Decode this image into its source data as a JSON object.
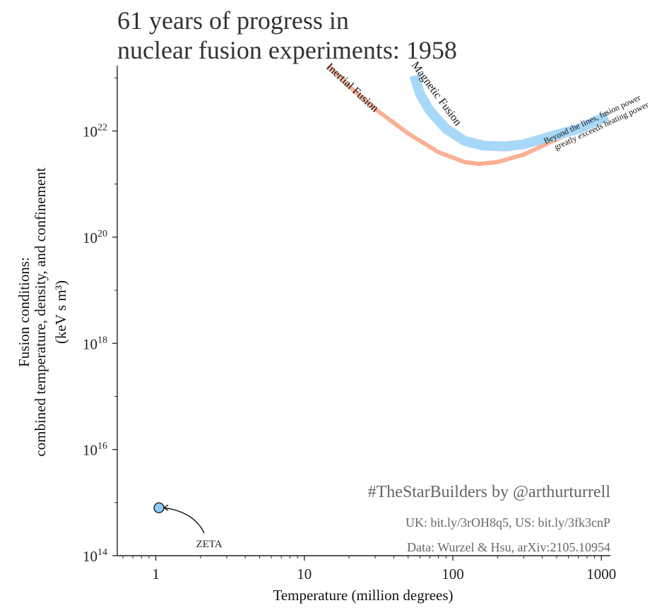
{
  "title": {
    "line1": "61 years of progress in",
    "line2_prefix": "nuclear fusion experiments: ",
    "year": "1958"
  },
  "chart_data": {
    "type": "scatter",
    "xlabel": "Temperature (million degrees)",
    "ylabel_lines": [
      "Fusion conditions:",
      "combined temperature, density, and confinement",
      "(keV s m³)"
    ],
    "xscale": "log",
    "yscale": "log",
    "xlim": [
      0.55,
      1150
    ],
    "ylim": [
      100000000000000.0,
      1.7e+23
    ],
    "x_ticks": [
      {
        "value": 1,
        "label": "1"
      },
      {
        "value": 10,
        "label": "10"
      },
      {
        "value": 100,
        "label": "100"
      },
      {
        "value": 1000,
        "label": "1000"
      }
    ],
    "y_ticks": [
      {
        "value": 100000000000000.0,
        "base": "10",
        "exp": "14"
      },
      {
        "value": 1e+16,
        "base": "10",
        "exp": "16"
      },
      {
        "value": 1e+18,
        "base": "10",
        "exp": "18"
      },
      {
        "value": 1e+20,
        "base": "10",
        "exp": "20"
      },
      {
        "value": 1e+22,
        "base": "10",
        "exp": "22"
      }
    ],
    "grid": false,
    "points": [
      {
        "label": "ZETA",
        "x": 1.05,
        "y": 800000000000000.0,
        "color": "#8fc8f0"
      }
    ],
    "threshold_curves": [
      {
        "name": "Inertial Fusion",
        "color": "#f8b195",
        "x": [
          14.5,
          20,
          30,
          50,
          80,
          120,
          150,
          200,
          300,
          500,
          700,
          1100
        ],
        "y": [
          1.7e+23,
          7e+22,
          2.6e+22,
          9e+21,
          4e+21,
          2.6e+21,
          2.4e+21,
          2.6e+21,
          3.6e+21,
          7e+21,
          1.1e+22,
          2.2e+22
        ]
      },
      {
        "name": "Magnetic Fusion",
        "color": "#a8d8f8",
        "x": [
          55,
          60,
          70,
          90,
          120,
          160,
          220,
          300,
          450,
          700,
          1100
        ],
        "y": [
          1.1e+23,
          5e+22,
          2.4e+22,
          1.1e+22,
          6.5e+21,
          5.3e+21,
          5.1e+21,
          5.6e+21,
          7.8e+21,
          1.1e+22,
          1.9e+22
        ]
      }
    ],
    "annotations": [
      "Beyond the lines, fusion power",
      "greatly exceeds heating power"
    ]
  },
  "credits": {
    "hashtag": "#TheStarBuilders by @arthurturrell",
    "links": "UK: bit.ly/3rOH8q5, US: bit.ly/3fk3cnP",
    "source": "Data: Wurzel & Hsu, arXiv:2105.10954"
  },
  "colors": {
    "inertial": "#f8b195",
    "magnetic": "#a8d8f8",
    "point_fill": "#8fc8f0",
    "text": "#333333"
  }
}
